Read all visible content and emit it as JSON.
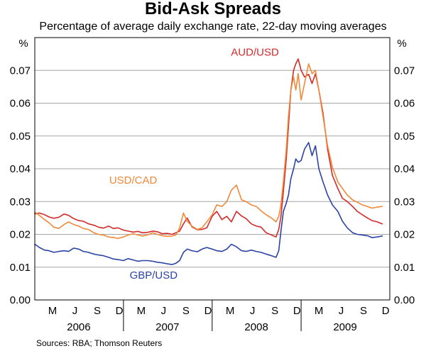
{
  "chart_data": {
    "type": "line",
    "title": "Bid-Ask Spreads",
    "subtitle": "Percentage of average daily exchange rate, 22-day moving averages",
    "unit_left": "%",
    "unit_right": "%",
    "ylim": [
      0,
      0.08
    ],
    "yticks": [
      "0.00",
      "0.01",
      "0.02",
      "0.03",
      "0.04",
      "0.05",
      "0.06",
      "0.07"
    ],
    "ytick_values": [
      0,
      0.01,
      0.02,
      0.03,
      0.04,
      0.05,
      0.06,
      0.07
    ],
    "grid": true,
    "xlim": [
      "2006-01-01",
      "2010-01-01"
    ],
    "month_ticks": [
      {
        "label": "M",
        "date": "2006-03-15"
      },
      {
        "label": "J",
        "date": "2006-06-15"
      },
      {
        "label": "S",
        "date": "2006-09-15"
      },
      {
        "label": "D",
        "date": "2006-12-15"
      },
      {
        "label": "M",
        "date": "2007-03-15"
      },
      {
        "label": "J",
        "date": "2007-06-15"
      },
      {
        "label": "S",
        "date": "2007-09-15"
      },
      {
        "label": "D",
        "date": "2007-12-15"
      },
      {
        "label": "M",
        "date": "2008-03-15"
      },
      {
        "label": "J",
        "date": "2008-06-15"
      },
      {
        "label": "S",
        "date": "2008-09-15"
      },
      {
        "label": "D",
        "date": "2008-12-15"
      },
      {
        "label": "M",
        "date": "2009-03-15"
      },
      {
        "label": "J",
        "date": "2009-06-15"
      },
      {
        "label": "S",
        "date": "2009-09-15"
      },
      {
        "label": "D",
        "date": "2009-12-15"
      }
    ],
    "years": [
      {
        "label": "2006",
        "date": "2006-07-01"
      },
      {
        "label": "2007",
        "date": "2007-07-01"
      },
      {
        "label": "2008",
        "date": "2008-07-01"
      },
      {
        "label": "2009",
        "date": "2009-07-01"
      }
    ],
    "series": [
      {
        "name": "AUD/USD",
        "color": "#d42a2a",
        "label_date": "2008-06-25",
        "label_value": 0.0745,
        "x": [
          "2006-01-01",
          "2006-01-20",
          "2006-02-10",
          "2006-03-01",
          "2006-03-20",
          "2006-04-10",
          "2006-05-01",
          "2006-05-20",
          "2006-06-10",
          "2006-07-01",
          "2006-07-20",
          "2006-08-10",
          "2006-09-01",
          "2006-09-20",
          "2006-10-10",
          "2006-11-01",
          "2006-11-20",
          "2006-12-10",
          "2007-01-01",
          "2007-01-20",
          "2007-02-10",
          "2007-03-01",
          "2007-03-20",
          "2007-04-10",
          "2007-05-01",
          "2007-05-20",
          "2007-06-10",
          "2007-07-01",
          "2007-07-20",
          "2007-08-05",
          "2007-08-20",
          "2007-09-05",
          "2007-09-20",
          "2007-10-10",
          "2007-11-01",
          "2007-11-20",
          "2007-12-10",
          "2008-01-01",
          "2008-01-20",
          "2008-02-10",
          "2008-03-01",
          "2008-03-20",
          "2008-04-10",
          "2008-05-01",
          "2008-05-20",
          "2008-06-10",
          "2008-07-01",
          "2008-07-20",
          "2008-08-10",
          "2008-09-01",
          "2008-09-20",
          "2008-10-01",
          "2008-10-10",
          "2008-10-20",
          "2008-11-01",
          "2008-11-10",
          "2008-11-20",
          "2008-12-01",
          "2008-12-10",
          "2008-12-20",
          "2009-01-01",
          "2009-01-15",
          "2009-02-01",
          "2009-02-15",
          "2009-03-01",
          "2009-03-15",
          "2009-04-01",
          "2009-04-20",
          "2009-05-10",
          "2009-06-01",
          "2009-06-20",
          "2009-07-10",
          "2009-08-01",
          "2009-08-20",
          "2009-09-10",
          "2009-10-01",
          "2009-10-20",
          "2009-11-10",
          "2009-12-01"
        ],
        "values": [
          0.0262,
          0.0265,
          0.026,
          0.0253,
          0.0249,
          0.0252,
          0.0262,
          0.0258,
          0.0248,
          0.0242,
          0.024,
          0.0232,
          0.0228,
          0.0222,
          0.0219,
          0.0225,
          0.0218,
          0.022,
          0.0213,
          0.021,
          0.0207,
          0.0209,
          0.0205,
          0.0206,
          0.021,
          0.0208,
          0.0202,
          0.0203,
          0.02,
          0.0205,
          0.021,
          0.0232,
          0.025,
          0.0223,
          0.0214,
          0.0215,
          0.022,
          0.0255,
          0.027,
          0.0245,
          0.0255,
          0.0238,
          0.027,
          0.0256,
          0.0248,
          0.0232,
          0.0225,
          0.0222,
          0.0205,
          0.0198,
          0.0192,
          0.0215,
          0.0255,
          0.033,
          0.043,
          0.053,
          0.064,
          0.07,
          0.072,
          0.0735,
          0.07,
          0.068,
          0.0688,
          0.066,
          0.069,
          0.064,
          0.057,
          0.046,
          0.038,
          0.034,
          0.031,
          0.03,
          0.0285,
          0.027,
          0.026,
          0.025,
          0.0242,
          0.0238,
          0.0232
        ]
      },
      {
        "name": "USD/CAD",
        "color": "#f0893a",
        "label_date": "2007-02-10",
        "label_value": 0.0355,
        "x": [
          "2006-01-01",
          "2006-01-20",
          "2006-02-10",
          "2006-03-01",
          "2006-03-20",
          "2006-04-10",
          "2006-05-01",
          "2006-05-20",
          "2006-06-10",
          "2006-07-01",
          "2006-07-20",
          "2006-08-10",
          "2006-09-01",
          "2006-09-20",
          "2006-10-10",
          "2006-11-01",
          "2006-11-20",
          "2006-12-10",
          "2007-01-01",
          "2007-01-20",
          "2007-02-10",
          "2007-03-01",
          "2007-03-20",
          "2007-04-10",
          "2007-05-01",
          "2007-05-20",
          "2007-06-10",
          "2007-07-01",
          "2007-07-20",
          "2007-08-05",
          "2007-08-20",
          "2007-09-05",
          "2007-09-20",
          "2007-10-10",
          "2007-11-01",
          "2007-11-20",
          "2007-12-10",
          "2008-01-01",
          "2008-01-20",
          "2008-02-10",
          "2008-03-01",
          "2008-03-20",
          "2008-04-10",
          "2008-05-01",
          "2008-05-20",
          "2008-06-10",
          "2008-07-01",
          "2008-07-20",
          "2008-08-10",
          "2008-09-01",
          "2008-09-20",
          "2008-10-01",
          "2008-10-10",
          "2008-10-20",
          "2008-11-01",
          "2008-11-10",
          "2008-11-20",
          "2008-12-01",
          "2008-12-10",
          "2008-12-20",
          "2009-01-01",
          "2009-01-15",
          "2009-02-01",
          "2009-02-15",
          "2009-03-01",
          "2009-03-15",
          "2009-04-01",
          "2009-04-20",
          "2009-05-10",
          "2009-06-01",
          "2009-06-20",
          "2009-07-10",
          "2009-08-01",
          "2009-08-20",
          "2009-09-10",
          "2009-10-01",
          "2009-10-20",
          "2009-11-10",
          "2009-12-01"
        ],
        "values": [
          0.0268,
          0.0258,
          0.0245,
          0.0235,
          0.0222,
          0.0218,
          0.023,
          0.0238,
          0.023,
          0.0225,
          0.0218,
          0.0215,
          0.0205,
          0.02,
          0.0198,
          0.0192,
          0.019,
          0.0188,
          0.0192,
          0.0198,
          0.0202,
          0.0198,
          0.0195,
          0.0198,
          0.0205,
          0.02,
          0.0196,
          0.0194,
          0.0195,
          0.0198,
          0.022,
          0.0265,
          0.024,
          0.0225,
          0.0215,
          0.022,
          0.0238,
          0.026,
          0.029,
          0.0285,
          0.03,
          0.0335,
          0.035,
          0.0305,
          0.03,
          0.029,
          0.0285,
          0.0272,
          0.026,
          0.025,
          0.0238,
          0.0255,
          0.029,
          0.036,
          0.046,
          0.056,
          0.064,
          0.068,
          0.064,
          0.069,
          0.061,
          0.066,
          0.072,
          0.069,
          0.07,
          0.064,
          0.056,
          0.047,
          0.0405,
          0.036,
          0.034,
          0.032,
          0.0305,
          0.0298,
          0.029,
          0.0285,
          0.028,
          0.0283,
          0.0285
        ]
      },
      {
        "name": "GBP/USD",
        "color": "#2c43a6",
        "label_date": "2007-05-05",
        "label_value": 0.0065,
        "x": [
          "2006-01-01",
          "2006-01-20",
          "2006-02-10",
          "2006-03-01",
          "2006-03-20",
          "2006-04-10",
          "2006-05-01",
          "2006-05-20",
          "2006-06-10",
          "2006-07-01",
          "2006-07-20",
          "2006-08-10",
          "2006-09-01",
          "2006-09-20",
          "2006-10-10",
          "2006-11-01",
          "2006-11-20",
          "2006-12-10",
          "2007-01-01",
          "2007-01-20",
          "2007-02-10",
          "2007-03-01",
          "2007-03-20",
          "2007-04-10",
          "2007-05-01",
          "2007-05-20",
          "2007-06-10",
          "2007-07-01",
          "2007-07-20",
          "2007-08-05",
          "2007-08-20",
          "2007-09-05",
          "2007-09-20",
          "2007-10-10",
          "2007-11-01",
          "2007-11-20",
          "2007-12-10",
          "2008-01-01",
          "2008-01-20",
          "2008-02-10",
          "2008-03-01",
          "2008-03-20",
          "2008-04-10",
          "2008-05-01",
          "2008-05-20",
          "2008-06-10",
          "2008-07-01",
          "2008-07-20",
          "2008-08-10",
          "2008-09-01",
          "2008-09-20",
          "2008-10-01",
          "2008-10-10",
          "2008-10-20",
          "2008-11-01",
          "2008-11-10",
          "2008-11-20",
          "2008-12-01",
          "2008-12-10",
          "2008-12-20",
          "2009-01-01",
          "2009-01-15",
          "2009-02-01",
          "2009-02-15",
          "2009-03-01",
          "2009-03-15",
          "2009-04-01",
          "2009-04-20",
          "2009-05-10",
          "2009-06-01",
          "2009-06-20",
          "2009-07-10",
          "2009-08-01",
          "2009-08-20",
          "2009-09-10",
          "2009-10-01",
          "2009-10-20",
          "2009-11-10",
          "2009-12-01"
        ],
        "values": [
          0.017,
          0.016,
          0.0152,
          0.015,
          0.0145,
          0.0148,
          0.015,
          0.0148,
          0.0158,
          0.0155,
          0.0148,
          0.0145,
          0.014,
          0.0137,
          0.0135,
          0.013,
          0.0125,
          0.0123,
          0.012,
          0.0126,
          0.0122,
          0.0118,
          0.012,
          0.012,
          0.0118,
          0.0115,
          0.0113,
          0.011,
          0.0108,
          0.0112,
          0.012,
          0.0145,
          0.0155,
          0.015,
          0.0147,
          0.0155,
          0.016,
          0.0155,
          0.015,
          0.0148,
          0.0155,
          0.017,
          0.0162,
          0.015,
          0.0148,
          0.0152,
          0.0148,
          0.0145,
          0.014,
          0.0135,
          0.013,
          0.015,
          0.021,
          0.027,
          0.0295,
          0.032,
          0.037,
          0.04,
          0.043,
          0.042,
          0.0425,
          0.046,
          0.048,
          0.044,
          0.047,
          0.04,
          0.036,
          0.032,
          0.029,
          0.027,
          0.024,
          0.022,
          0.0205,
          0.02,
          0.0198,
          0.0196,
          0.019,
          0.0192,
          0.0195
        ]
      }
    ],
    "source": "Sources: RBA; Thomson Reuters"
  }
}
